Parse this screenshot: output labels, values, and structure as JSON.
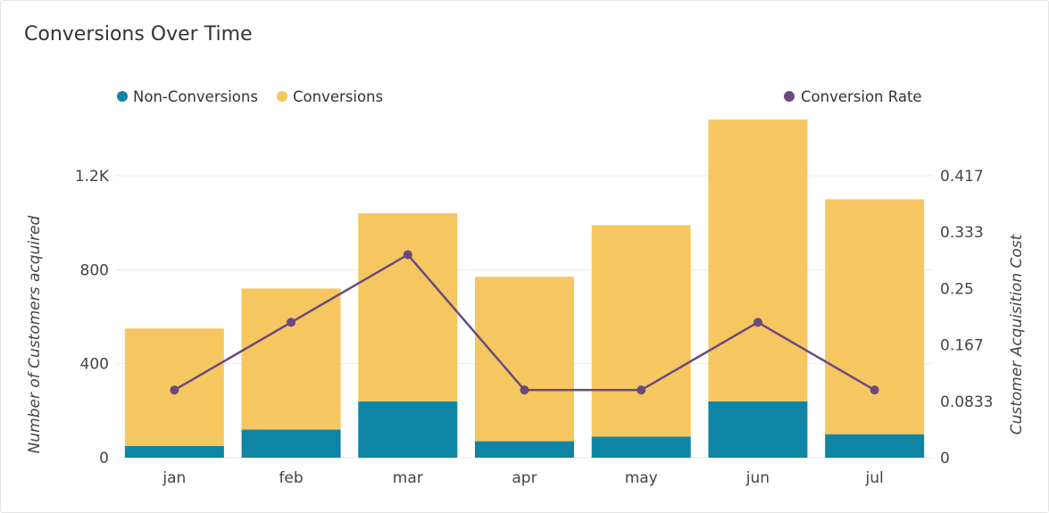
{
  "title": "Conversions Over Time",
  "colors": {
    "non_conversions": "#0f84a5",
    "conversions": "#f6c760",
    "conversion_rate": "#6a4a7e"
  },
  "chart_data": {
    "type": "bar",
    "stacked": true,
    "title": "Conversions Over Time",
    "categories": [
      "jan",
      "feb",
      "mar",
      "apr",
      "may",
      "jun",
      "jul"
    ],
    "series": [
      {
        "name": "Non-Conversions",
        "type": "bar",
        "axis": "left",
        "values": [
          50,
          120,
          240,
          70,
          90,
          240,
          100
        ]
      },
      {
        "name": "Conversions",
        "type": "bar",
        "axis": "left",
        "values": [
          500,
          600,
          800,
          700,
          900,
          1200,
          1000
        ]
      },
      {
        "name": "Conversion Rate",
        "type": "line",
        "axis": "right",
        "values": [
          0.1,
          0.2,
          0.3,
          0.1,
          0.1,
          0.2,
          0.1
        ]
      }
    ],
    "ylabel": "Number of Customers acquired",
    "y2label": "Customer Acquisition Cost",
    "ylim": [
      0,
      1500
    ],
    "y2lim": [
      0,
      0.5208
    ],
    "yticks": [
      0,
      400,
      800,
      1200
    ],
    "ytick_labels": [
      "0",
      "400",
      "800",
      "1.2K"
    ],
    "y2ticks": [
      0,
      0.0833,
      0.1667,
      0.25,
      0.3333,
      0.4167
    ],
    "y2tick_labels": [
      "0",
      "0.0833",
      "0.167",
      "0.25",
      "0.333",
      "0.417"
    ],
    "grid": true,
    "legend": "top"
  }
}
